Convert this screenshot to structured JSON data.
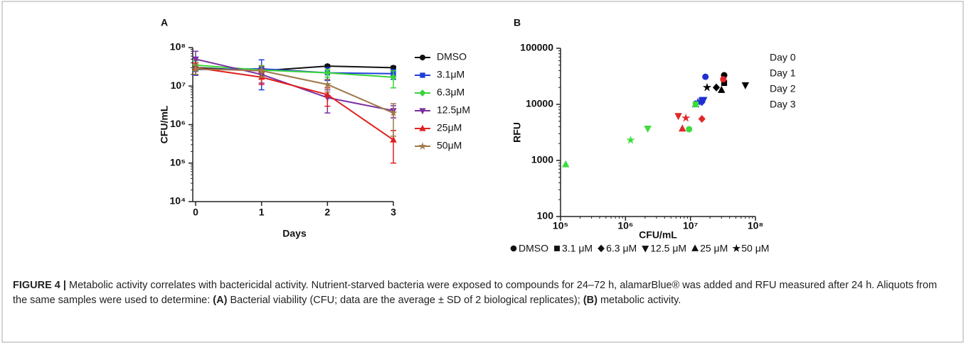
{
  "chart_data": [
    {
      "type": "line",
      "panel": "A",
      "ylabel": "CFU/mL",
      "xlabel": "Days",
      "log_y": true,
      "x": [
        0,
        1,
        2,
        3
      ],
      "xlim": [
        0,
        3
      ],
      "xticks": [
        0,
        1,
        2,
        3
      ],
      "ylim": [
        10000,
        100000000
      ],
      "yticks": [
        {
          "value": 10000,
          "label": "10⁴"
        },
        {
          "value": 100000,
          "label": "10⁵"
        },
        {
          "value": 1000000,
          "label": "10⁶"
        },
        {
          "value": 10000000,
          "label": "10⁷"
        },
        {
          "value": 100000000,
          "label": "10⁸"
        }
      ],
      "series": [
        {
          "name": "DMSO",
          "color": "#111111",
          "marker": "circle",
          "values": [
            30000000,
            25000000,
            33000000,
            30000000
          ],
          "errors": [
            5000000,
            5000000,
            3000000,
            3000000
          ]
        },
        {
          "name": "3.1μM",
          "color": "#1f3fd6",
          "marker": "square",
          "values": [
            27000000,
            28000000,
            22000000,
            21000000
          ],
          "errors": [
            8000000,
            20000000,
            8000000,
            6000000
          ]
        },
        {
          "name": "6.3μM",
          "color": "#39d439",
          "marker": "diamond",
          "values": [
            35000000,
            26000000,
            22000000,
            17000000
          ],
          "errors": [
            10000000,
            8000000,
            5000000,
            8000000
          ]
        },
        {
          "name": "12.5μM",
          "color": "#7b2fa0",
          "marker": "triangle-down",
          "values": [
            50000000,
            20000000,
            5000000,
            2300000
          ],
          "errors": [
            30000000,
            8000000,
            3000000,
            800000
          ]
        },
        {
          "name": "25μM",
          "color": "#e02020",
          "marker": "triangle",
          "values": [
            30000000,
            17000000,
            6000000,
            400000
          ],
          "errors": [
            10000000,
            6000000,
            3000000,
            300000
          ]
        },
        {
          "name": "50μM",
          "color": "#a0784a",
          "marker": "star",
          "values": [
            28000000,
            25000000,
            11000000,
            2000000
          ],
          "errors": [
            8000000,
            8000000,
            4000000,
            1500000
          ]
        }
      ]
    },
    {
      "type": "scatter",
      "panel": "B",
      "ylabel": "RFU",
      "xlabel": "CFU/mL",
      "log_x": true,
      "log_y": true,
      "xlim": [
        100000,
        100000000
      ],
      "xticks": [
        {
          "value": 100000,
          "label": "10⁵"
        },
        {
          "value": 1000000,
          "label": "10⁶"
        },
        {
          "value": 10000000,
          "label": "10⁷"
        },
        {
          "value": 100000000,
          "label": "10⁸"
        }
      ],
      "ylim": [
        100,
        100000
      ],
      "yticks": [
        100,
        1000,
        10000,
        100000
      ],
      "series": [
        {
          "name": "Day 0",
          "color": "#000000",
          "x": [
            33000000,
            33000000,
            25000000,
            70000000,
            30000000,
            18000000
          ],
          "y": [
            33000,
            24000,
            20000,
            22000,
            18000,
            20000
          ],
          "markers": [
            "circle",
            "square",
            "diamond",
            "triangle-down",
            "triangle",
            "star"
          ]
        },
        {
          "name": "Day 1",
          "color": "#1f2fd0",
          "x": [
            17000000,
            15000000,
            15000000,
            16000000,
            12000000,
            13000000
          ],
          "y": [
            31000,
            12000,
            11000,
            12000,
            10000,
            11000
          ],
          "markers": [
            "circle",
            "square",
            "diamond",
            "triangle-down",
            "triangle",
            "star"
          ]
        },
        {
          "name": "Day 2",
          "color": "#e0282a",
          "x": [
            32000000,
            6500000,
            8500000,
            7500000,
            15000000
          ],
          "y": [
            28000,
            6200,
            5700,
            3700,
            5500
          ],
          "markers": [
            "circle",
            "triangle-down",
            "star",
            "triangle",
            "diamond"
          ]
        },
        {
          "name": "Day 3",
          "color": "#3ddc3d",
          "x": [
            120000,
            1200000,
            2200000,
            9500000,
            12000000
          ],
          "y": [
            850,
            2300,
            3700,
            3600,
            10000
          ],
          "markers": [
            "triangle",
            "star",
            "triangle-down",
            "circle",
            "square"
          ]
        }
      ],
      "marker_legend": [
        {
          "name": "DMSO",
          "shape": "circle"
        },
        {
          "name": "3.1 μM",
          "shape": "square"
        },
        {
          "name": "6.3 μM",
          "shape": "diamond"
        },
        {
          "name": "12.5 μM",
          "shape": "triangle-down"
        },
        {
          "name": "25 μM",
          "shape": "triangle"
        },
        {
          "name": "50 μM",
          "shape": "star"
        }
      ]
    }
  ],
  "caption": [
    "FIGURE 4 |",
    " Metabolic activity correlates with bactericidal activity. Nutrient-starved bacteria were exposed to compounds for 24–72 h, alamarBlue® was added and RFU measured after 24 h. Aliquots from the same samples were used to determine: ",
    "(A)",
    " Bacterial viability (CFU; data are the average ± SD of 2 biological replicates); ",
    "(B)",
    " metabolic activity."
  ]
}
